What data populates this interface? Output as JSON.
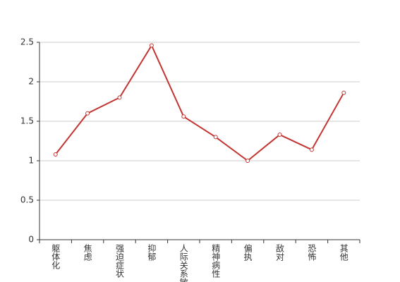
{
  "chart_data": {
    "type": "line",
    "categories": [
      "躯体化",
      "焦虑",
      "强迫症状",
      "抑郁",
      "人际关系敏感",
      "精神病性",
      "偏执",
      "敌对",
      "恐怖",
      "其他"
    ],
    "series": [
      {
        "color": "#c23531",
        "values": [
          1.08,
          1.6,
          1.8,
          2.46,
          1.56,
          1.3,
          1.0,
          1.33,
          1.14,
          1.86
        ]
      }
    ],
    "ylim": [
      0,
      2.5
    ],
    "yticks": [
      0,
      0.5,
      1,
      1.5,
      2,
      2.5
    ],
    "grid": true
  }
}
